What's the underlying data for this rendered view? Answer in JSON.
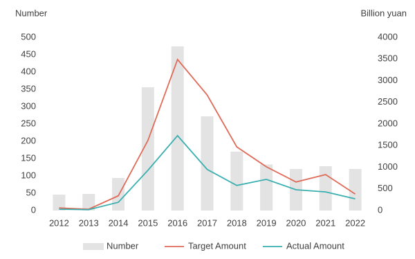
{
  "chart_data": {
    "type": "combo",
    "y_axis_label": "Number",
    "y2_axis_label": "Billion yuan",
    "categories": [
      "2012",
      "2013",
      "2014",
      "2015",
      "2016",
      "2017",
      "2018",
      "2019",
      "2020",
      "2021",
      "2022"
    ],
    "series": [
      {
        "name": "Number",
        "type": "bar",
        "color": "#e3e3e3",
        "values": [
          46,
          48,
          94,
          356,
          474,
          272,
          170,
          133,
          120,
          128,
          120
        ]
      },
      {
        "name": "Target Amount",
        "type": "line",
        "axis": "y2",
        "color": "#e06a58",
        "values": [
          60,
          30,
          340,
          1620,
          3490,
          2670,
          1470,
          1010,
          660,
          830,
          380
        ]
      },
      {
        "name": "Actual Amount",
        "type": "line",
        "axis": "y2",
        "color": "#3aafb0",
        "values": [
          30,
          20,
          190,
          930,
          1730,
          950,
          580,
          720,
          480,
          430,
          270
        ]
      }
    ],
    "ylim": [
      0,
      500
    ],
    "yticks": [
      0,
      50,
      100,
      150,
      200,
      250,
      300,
      350,
      400,
      450,
      500
    ],
    "y2lim": [
      0,
      4000
    ],
    "y2ticks": [
      0,
      500,
      1000,
      1500,
      2000,
      2500,
      3000,
      3500,
      4000
    ],
    "legend": "bottom"
  }
}
